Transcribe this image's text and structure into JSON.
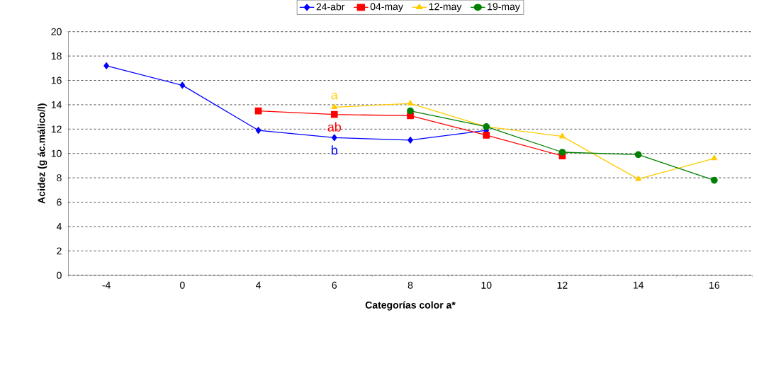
{
  "chart_data": {
    "type": "line",
    "xlabel": "Categorías color a*",
    "ylabel": "Acidez (g ác.málico/l)",
    "categories": [
      "-4",
      "0",
      "4",
      "6",
      "8",
      "10",
      "12",
      "14",
      "16"
    ],
    "series": [
      {
        "name": "24-abr",
        "color": "#0000ff",
        "marker": "diamond",
        "values": [
          17.2,
          15.6,
          11.9,
          11.3,
          11.1,
          11.9,
          null,
          null,
          null
        ]
      },
      {
        "name": "04-may",
        "color": "#ff0000",
        "marker": "square",
        "values": [
          null,
          null,
          13.5,
          13.2,
          13.1,
          11.5,
          9.8,
          null,
          null
        ]
      },
      {
        "name": "12-may",
        "color": "#ffcc00",
        "marker": "triangle",
        "values": [
          null,
          null,
          null,
          13.8,
          14.1,
          12.2,
          11.4,
          7.9,
          9.6
        ]
      },
      {
        "name": "19-may",
        "color": "#008000",
        "marker": "circle",
        "values": [
          null,
          null,
          null,
          null,
          13.5,
          12.2,
          10.1,
          9.9,
          7.8
        ]
      }
    ],
    "annotations": [
      {
        "text": "b",
        "x": "6",
        "y": 11.3
      },
      {
        "text": "ab",
        "x": "6",
        "y": 13.2
      },
      {
        "text": "a",
        "x": "6",
        "y": 13.8
      }
    ],
    "ylim": [
      0,
      20
    ],
    "yticks": [
      0,
      2,
      4,
      6,
      8,
      10,
      12,
      14,
      16,
      18,
      20
    ],
    "grid": "y",
    "legend": "top",
    "line_style": "solid"
  }
}
